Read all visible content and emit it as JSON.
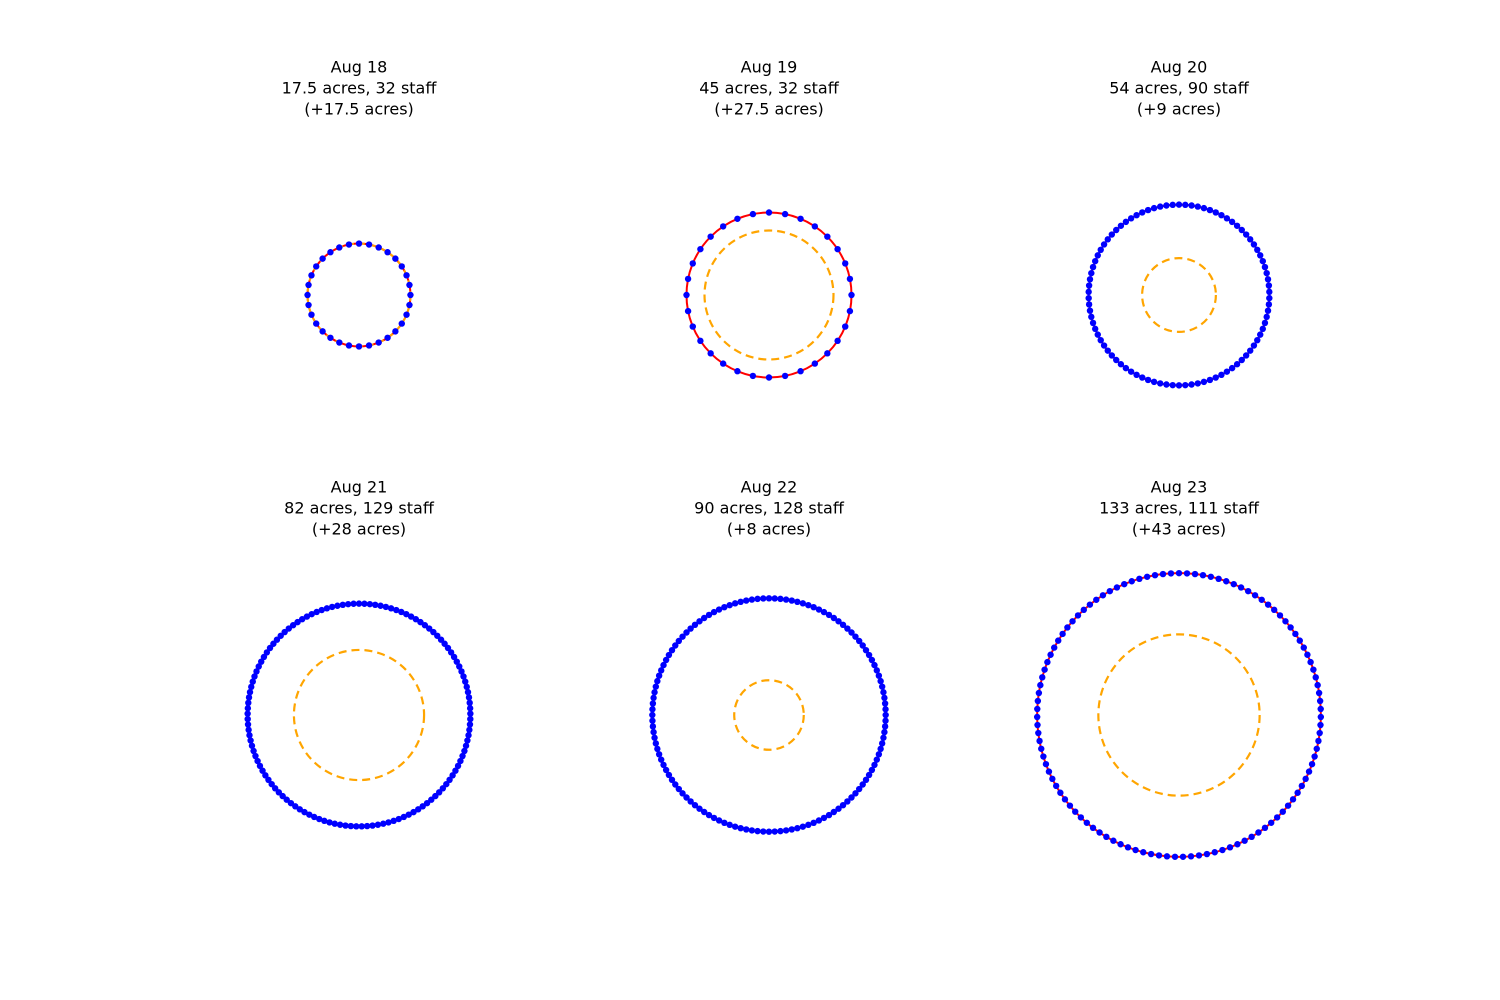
{
  "chart_data": [
    {
      "type": "scatter",
      "date": "Aug 18",
      "acres_label": "17.5 acres, 32 staff",
      "change_label": "(+17.5 acres)",
      "acres": 17.5,
      "staff": 32,
      "change_acres": 17.5
    },
    {
      "type": "scatter",
      "date": "Aug 19",
      "acres_label": "45 acres, 32 staff",
      "change_label": "(+27.5 acres)",
      "acres": 45,
      "staff": 32,
      "change_acres": 27.5
    },
    {
      "type": "scatter",
      "date": "Aug 20",
      "acres_label": "54 acres, 90 staff",
      "change_label": "(+9 acres)",
      "acres": 54,
      "staff": 90,
      "change_acres": 9
    },
    {
      "type": "scatter",
      "date": "Aug 21",
      "acres_label": "82 acres, 129 staff",
      "change_label": "(+28 acres)",
      "acres": 82,
      "staff": 129,
      "change_acres": 28
    },
    {
      "type": "scatter",
      "date": "Aug 22",
      "acres_label": "90 acres, 128 staff",
      "change_label": "(+8 acres)",
      "acres": 90,
      "staff": 128,
      "change_acres": 8
    },
    {
      "type": "scatter",
      "date": "Aug 23",
      "acres_label": "133 acres, 111 staff",
      "change_label": "(+43 acres)",
      "acres": 133,
      "staff": 111,
      "change_acres": 43
    }
  ],
  "colors": {
    "perimeter_line": "#ff0000",
    "staff_marker": "#0000ff",
    "growth_ring": "#ffa500"
  }
}
